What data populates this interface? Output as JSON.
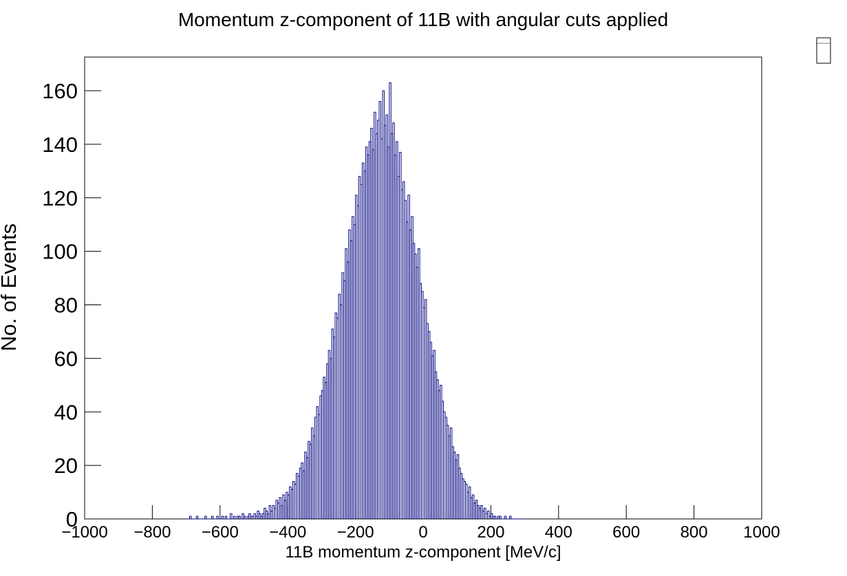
{
  "chart_data": {
    "type": "histogram",
    "title": "Momentum z-component of 11B with angular cuts applied",
    "xlabel": "11B momentum z-component [MeV/c]",
    "ylabel": "No. of Events",
    "color": "#000080",
    "xlim": [
      -1000,
      1000
    ],
    "ylim": [
      0,
      172.6
    ],
    "xticks": [
      {
        "value": -1000,
        "label": "−1000"
      },
      {
        "value": -800,
        "label": "−800"
      },
      {
        "value": -600,
        "label": "−600"
      },
      {
        "value": -400,
        "label": "−400"
      },
      {
        "value": -200,
        "label": "−200"
      },
      0,
      200,
      400,
      600,
      800,
      1000
    ],
    "yticks": [
      0,
      20,
      40,
      60,
      80,
      100,
      120,
      140,
      160
    ],
    "bins": [
      -700,
      -695,
      -690,
      -685,
      -680,
      -675,
      -670,
      -665,
      -660,
      -655,
      -650,
      -645,
      -640,
      -635,
      -630,
      -625,
      -620,
      -615,
      -610,
      -605,
      -600,
      -595,
      -590,
      -585,
      -580,
      -575,
      -570,
      -565,
      -560,
      -555,
      -550,
      -545,
      -540,
      -535,
      -530,
      -525,
      -520,
      -515,
      -510,
      -505,
      -500,
      -495,
      -490,
      -485,
      -480,
      -475,
      -470,
      -465,
      -460,
      -455,
      -450,
      -445,
      -440,
      -435,
      -430,
      -425,
      -420,
      -415,
      -410,
      -405,
      -400,
      -395,
      -390,
      -385,
      -380,
      -375,
      -370,
      -365,
      -360,
      -355,
      -350,
      -345,
      -340,
      -335,
      -330,
      -325,
      -320,
      -315,
      -310,
      -305,
      -300,
      -295,
      -290,
      -285,
      -280,
      -275,
      -270,
      -265,
      -260,
      -255,
      -250,
      -245,
      -240,
      -235,
      -230,
      -225,
      -220,
      -215,
      -210,
      -205,
      -200,
      -195,
      -190,
      -185,
      -180,
      -175,
      -170,
      -165,
      -160,
      -155,
      -150,
      -145,
      -140,
      -135,
      -130,
      -125,
      -120,
      -115,
      -110,
      -105,
      -100,
      -95,
      -90,
      -85,
      -80,
      -75,
      -70,
      -65,
      -60,
      -55,
      -50,
      -45,
      -40,
      -35,
      -30,
      -25,
      -20,
      -15,
      -10,
      -5,
      0,
      5,
      10,
      15,
      20,
      25,
      30,
      35,
      40,
      45,
      50,
      55,
      60,
      65,
      70,
      75,
      80,
      85,
      90,
      95,
      100,
      105,
      110,
      115,
      120,
      125,
      130,
      135,
      140,
      145,
      150,
      155,
      160,
      165,
      170,
      175,
      180,
      185,
      190,
      195,
      200,
      205,
      210,
      215,
      220,
      225,
      230,
      235,
      240,
      245,
      250,
      255,
      260,
      265,
      270,
      275,
      280,
      285,
      290,
      295,
      300
    ],
    "values": [
      0,
      0,
      1,
      0,
      0,
      0,
      1,
      0,
      0,
      0,
      0,
      1,
      0,
      0,
      0,
      1,
      0,
      0,
      1,
      0,
      0,
      1,
      0,
      1,
      0,
      0,
      2,
      0,
      1,
      0,
      1,
      1,
      0,
      2,
      1,
      0,
      1,
      2,
      1,
      1,
      2,
      1,
      3,
      2,
      1,
      2,
      4,
      3,
      2,
      5,
      3,
      5,
      4,
      7,
      6,
      8,
      5,
      9,
      7,
      10,
      9,
      12,
      11,
      14,
      13,
      17,
      16,
      19,
      21,
      18,
      25,
      23,
      29,
      28,
      34,
      31,
      38,
      42,
      39,
      46,
      48,
      53,
      51,
      58,
      63,
      60,
      71,
      68,
      77,
      75,
      84,
      80,
      92,
      89,
      101,
      96,
      108,
      104,
      113,
      110,
      121,
      117,
      128,
      125,
      133,
      130,
      139,
      136,
      141,
      146,
      138,
      152,
      144,
      149,
      156,
      142,
      160,
      147,
      151,
      139,
      163,
      144,
      148,
      136,
      141,
      128,
      137,
      123,
      126,
      119,
      111,
      121,
      108,
      113,
      103,
      99,
      94,
      101,
      88,
      85,
      79,
      82,
      73,
      70,
      66,
      61,
      63,
      55,
      52,
      48,
      50,
      44,
      40,
      38,
      35,
      31,
      34,
      27,
      25,
      22,
      24,
      19,
      17,
      15,
      14,
      13,
      10,
      12,
      8,
      9,
      6,
      7,
      5,
      4,
      5,
      3,
      4,
      2,
      3,
      1,
      2,
      1,
      1,
      0,
      1,
      1,
      0,
      0,
      1,
      0,
      0,
      1,
      0,
      0,
      0,
      0,
      0,
      0,
      0,
      0
    ]
  }
}
